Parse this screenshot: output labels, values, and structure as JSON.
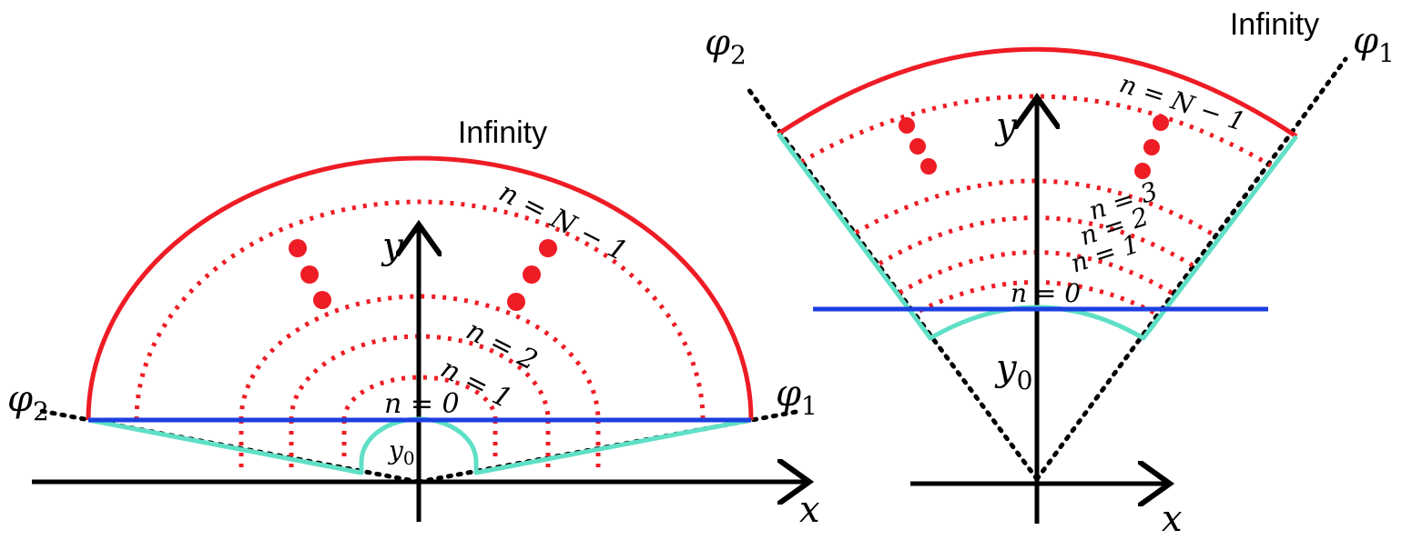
{
  "colors": {
    "boundary": "#ee1c25",
    "line": "#1b3fe0",
    "contour": "#5fe0c6",
    "axis": "#000000"
  },
  "left_panel": {
    "title": "Infinity",
    "phi_left": "φ",
    "phi_left_sub": "2",
    "phi_right": "φ",
    "phi_right_sub": "1",
    "axis_x": "x",
    "axis_y": "y",
    "y0": "y",
    "y0_sub": "0",
    "labels": {
      "n0": "n = 0",
      "n1": "n = 1",
      "n2": "n = 2",
      "nN": "n = N − 1"
    }
  },
  "right_panel": {
    "title": "Infinity",
    "phi_left": "φ",
    "phi_left_sub": "2",
    "phi_right": "φ",
    "phi_right_sub": "1",
    "axis_x": "x",
    "axis_y": "y",
    "y0": "y",
    "y0_sub": "0",
    "labels": {
      "n0": "n = 0",
      "n1": "n = 1",
      "n2": "n = 2",
      "n3": "n = 3",
      "nN": "n = N − 1"
    }
  }
}
